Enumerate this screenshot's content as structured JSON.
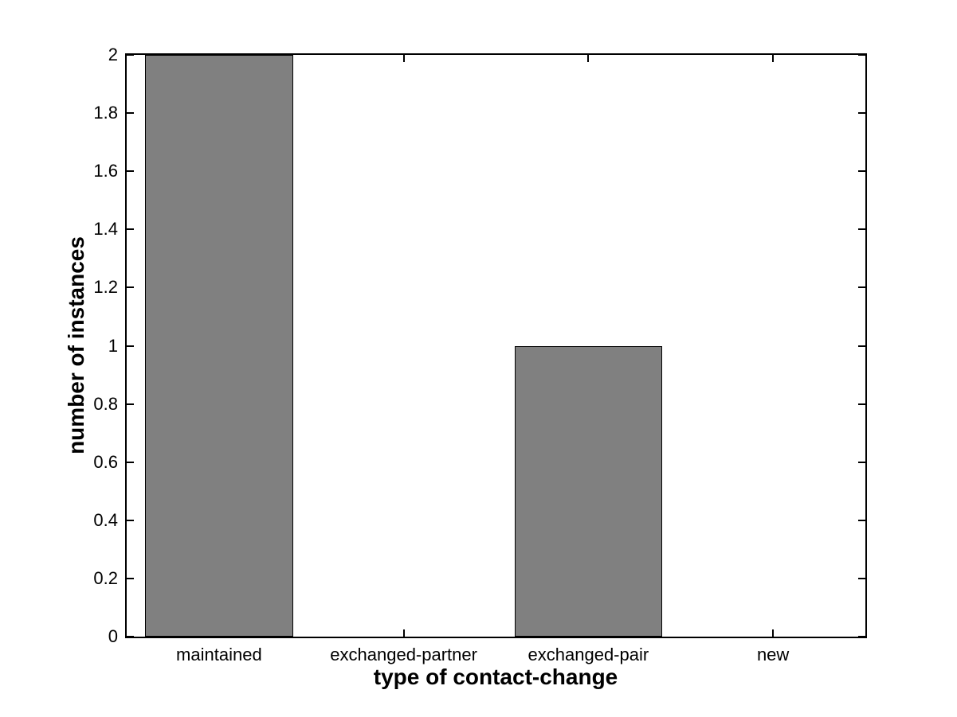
{
  "figure": {
    "background_color": "#ffffff",
    "axis_color": "#000000",
    "text_color": "#000000"
  },
  "chart_data": {
    "type": "bar",
    "title": "",
    "categories": [
      "maintained",
      "exchanged-partner",
      "exchanged-pair",
      "new"
    ],
    "values": [
      2,
      0,
      1,
      0
    ],
    "xlabel": "type of contact-change",
    "ylabel": "number of instances",
    "ylim": [
      0,
      2
    ],
    "yticks": [
      0,
      0.2,
      0.4,
      0.6,
      0.8,
      1,
      1.2,
      1.4,
      1.6,
      1.8,
      2
    ],
    "ytick_labels": [
      "0",
      "0.2",
      "0.4",
      "0.6",
      "0.8",
      "1",
      "1.2",
      "1.4",
      "1.6",
      "1.8",
      "2"
    ],
    "bar_color": "#808080",
    "bar_edge_color": "#000000",
    "bar_width_fraction": 0.8,
    "grid": false,
    "legend": null,
    "tick_direction": "in",
    "box": true
  }
}
